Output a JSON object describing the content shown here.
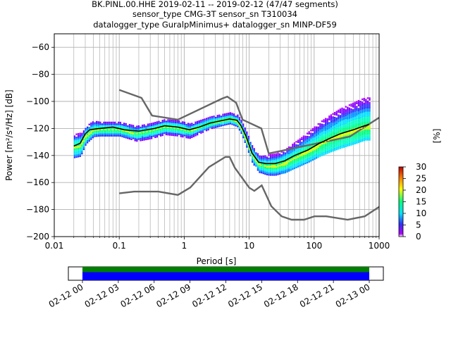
{
  "header": {
    "line1": "BK.PINL.00.HHE   2019-02-11 -- 2019-02-12  (47/47 segments)",
    "line2": "sensor_type CMG-3T sensor_sn T310034",
    "line3": "datalogger_type GuralpMinimus+ datalogger_sn MINP-DF59"
  },
  "chart_data": {
    "type": "heatmap",
    "title": "BK.PINL.00.HHE   2019-02-11 -- 2019-02-12  (47/47 segments)",
    "xlabel": "Period [s]",
    "ylabel": "Power [m²/s⁴/Hz] [dB]",
    "xscale": "log",
    "xlim": [
      0.01,
      1000
    ],
    "ylim": [
      -200,
      -50
    ],
    "x_ticks": [
      0.01,
      0.1,
      1,
      10,
      100,
      1000
    ],
    "x_tick_labels": [
      "0.01",
      "0.1",
      "1",
      "10",
      "100",
      "1000"
    ],
    "y_ticks": [
      -200,
      -180,
      -160,
      -140,
      -120,
      -100,
      -80,
      -60
    ],
    "y_tick_labels": [
      "−200",
      "−180",
      "−160",
      "−140",
      "−120",
      "−100",
      "−80",
      "−60"
    ],
    "grid": true,
    "colorbar": {
      "label": "[%]",
      "range": [
        0,
        30
      ],
      "ticks": [
        0,
        5,
        10,
        15,
        20,
        25,
        30
      ],
      "tick_labels": [
        "0",
        "5",
        "10",
        "15",
        "20",
        "25",
        "30"
      ],
      "colormap": [
        "#ffffff",
        "#b000ff",
        "#3030ff",
        "#00e0ff",
        "#00ff80",
        "#ffff00",
        "#ff8000",
        "#c00000"
      ]
    },
    "noise_models": {
      "high": [
        [
          0.1,
          -91.5
        ],
        [
          0.22,
          -97.4
        ],
        [
          0.32,
          -110.5
        ],
        [
          0.8,
          -113.5
        ],
        [
          3.8,
          -98.0
        ],
        [
          4.6,
          -96.5
        ],
        [
          6.3,
          -101.0
        ],
        [
          7.9,
          -113.5
        ],
        [
          15.4,
          -120.0
        ],
        [
          20.0,
          -138.5
        ],
        [
          354.8,
          -126.0
        ],
        [
          1000.0,
          -112.0
        ]
      ],
      "low": [
        [
          0.1,
          -168.0
        ],
        [
          0.17,
          -166.7
        ],
        [
          0.4,
          -166.7
        ],
        [
          0.8,
          -169.2
        ],
        [
          1.24,
          -163.7
        ],
        [
          2.4,
          -148.6
        ],
        [
          4.3,
          -141.1
        ],
        [
          5.0,
          -141.1
        ],
        [
          6.0,
          -149.0
        ],
        [
          10.0,
          -163.8
        ],
        [
          12.0,
          -166.2
        ],
        [
          15.6,
          -162.1
        ],
        [
          21.9,
          -177.5
        ],
        [
          31.6,
          -185.0
        ],
        [
          45.0,
          -187.5
        ],
        [
          70.0,
          -187.5
        ],
        [
          101.0,
          -185.0
        ],
        [
          154.0,
          -185.0
        ],
        [
          328.0,
          -187.5
        ],
        [
          600.0,
          -185.0
        ],
        [
          1000.0,
          -178.0
        ]
      ]
    },
    "mean_psd": [
      [
        0.02,
        -133
      ],
      [
        0.025,
        -131
      ],
      [
        0.03,
        -124
      ],
      [
        0.035,
        -121
      ],
      [
        0.05,
        -120
      ],
      [
        0.08,
        -119
      ],
      [
        0.12,
        -121
      ],
      [
        0.2,
        -122
      ],
      [
        0.35,
        -120
      ],
      [
        0.5,
        -118
      ],
      [
        0.8,
        -119
      ],
      [
        1.2,
        -121
      ],
      [
        1.7,
        -119
      ],
      [
        2.5,
        -116
      ],
      [
        4,
        -114
      ],
      [
        5,
        -113
      ],
      [
        6.5,
        -114
      ],
      [
        7.5,
        -118
      ],
      [
        9,
        -126
      ],
      [
        11,
        -138
      ],
      [
        14,
        -145
      ],
      [
        18,
        -146
      ],
      [
        25,
        -146
      ],
      [
        35,
        -144
      ],
      [
        50,
        -140
      ],
      [
        80,
        -136
      ],
      [
        120,
        -131
      ],
      [
        180,
        -127
      ],
      [
        250,
        -124
      ],
      [
        400,
        -121
      ],
      [
        600,
        -118
      ],
      [
        700,
        -117
      ]
    ],
    "mode_psd": [
      [
        0.02,
        -134
      ],
      [
        0.025,
        -133
      ],
      [
        0.03,
        -126
      ],
      [
        0.04,
        -121
      ],
      [
        0.06,
        -121
      ],
      [
        0.1,
        -121
      ],
      [
        0.18,
        -124
      ],
      [
        0.3,
        -122
      ],
      [
        0.5,
        -119
      ],
      [
        0.8,
        -120
      ],
      [
        1.2,
        -122
      ],
      [
        1.7,
        -119
      ],
      [
        2.5,
        -116
      ],
      [
        4,
        -114
      ],
      [
        5,
        -113
      ],
      [
        6.5,
        -115
      ],
      [
        7.5,
        -120
      ],
      [
        9,
        -129
      ],
      [
        11,
        -140
      ],
      [
        14,
        -147
      ],
      [
        18,
        -148
      ],
      [
        25,
        -148
      ],
      [
        35,
        -146
      ],
      [
        50,
        -142
      ],
      [
        80,
        -137
      ],
      [
        120,
        -132
      ],
      [
        180,
        -128
      ],
      [
        250,
        -125
      ],
      [
        400,
        -122
      ],
      [
        600,
        -119
      ]
    ],
    "histogram_spread": [
      [
        0.02,
        8,
        10,
        8
      ],
      [
        0.025,
        8,
        10,
        9
      ],
      [
        0.03,
        6,
        8,
        9
      ],
      [
        0.05,
        5,
        6,
        9
      ],
      [
        0.1,
        5,
        6,
        10
      ],
      [
        0.2,
        6,
        6,
        10
      ],
      [
        0.5,
        6,
        6,
        10
      ],
      [
        1,
        6,
        6,
        10
      ],
      [
        2,
        5,
        5,
        11
      ],
      [
        4,
        4,
        5,
        11
      ],
      [
        6,
        4,
        5,
        11
      ],
      [
        8,
        5,
        6,
        10
      ],
      [
        10,
        6,
        7,
        9
      ],
      [
        15,
        6,
        7,
        9
      ],
      [
        20,
        7,
        9,
        8
      ],
      [
        30,
        7,
        10,
        8
      ],
      [
        60,
        8,
        13,
        8
      ],
      [
        120,
        9,
        17,
        7
      ],
      [
        250,
        10,
        20,
        7
      ],
      [
        500,
        10,
        22,
        6
      ],
      [
        700,
        10,
        22,
        6
      ]
    ],
    "timeline": {
      "tick_labels": [
        "02-12 00",
        "02-12 03",
        "02-12 06",
        "02-12 09",
        "02-12 12",
        "02-12 15",
        "02-12 18",
        "02-12 21",
        "02-13 00"
      ],
      "coverage_color": "#0000ff",
      "gaps_color": "#008000",
      "coverage_start": "02-12 00",
      "coverage_end": "02-13 00"
    }
  }
}
